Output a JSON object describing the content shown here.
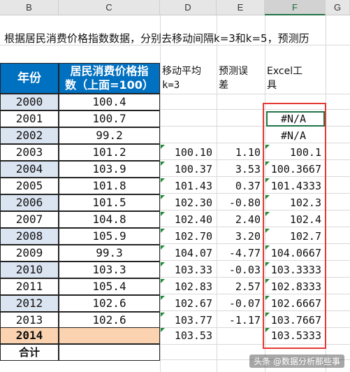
{
  "columns": [
    "B",
    "C",
    "D",
    "E",
    "F",
    "G"
  ],
  "intro_text": "根据居民消费价格指数数据，分别去移动间隔k=3和k=5，预测历",
  "headers": {
    "year": "年份",
    "cpi_line1": "居民消费价格指",
    "cpi_line2": "数（上面=100）",
    "ma_line1": "移动平均",
    "ma_line2": "k=3",
    "err_line1": "预测误",
    "err_line2": "差",
    "tool_line1": "Excel工",
    "tool_line2": "具"
  },
  "rows": [
    {
      "year": "2000",
      "cpi": "100.4",
      "ma": "",
      "err": "",
      "tool": ""
    },
    {
      "year": "2001",
      "cpi": "100.7",
      "ma": "",
      "err": "",
      "tool": "#N/A"
    },
    {
      "year": "2002",
      "cpi": "99.2",
      "ma": "",
      "err": "",
      "tool": "#N/A"
    },
    {
      "year": "2003",
      "cpi": "101.2",
      "ma": "100.10",
      "err": "1.10",
      "tool": "100.1"
    },
    {
      "year": "2004",
      "cpi": "103.9",
      "ma": "100.37",
      "err": "3.53",
      "tool": "100.3667"
    },
    {
      "year": "2005",
      "cpi": "101.8",
      "ma": "101.43",
      "err": "0.37",
      "tool": "101.4333"
    },
    {
      "year": "2006",
      "cpi": "101.5",
      "ma": "102.30",
      "err": "-0.80",
      "tool": "102.3"
    },
    {
      "year": "2007",
      "cpi": "104.8",
      "ma": "102.40",
      "err": "2.40",
      "tool": "102.4"
    },
    {
      "year": "2008",
      "cpi": "105.9",
      "ma": "102.70",
      "err": "3.20",
      "tool": "102.7"
    },
    {
      "year": "2009",
      "cpi": "99.3",
      "ma": "104.07",
      "err": "-4.77",
      "tool": "104.0667"
    },
    {
      "year": "2010",
      "cpi": "103.3",
      "ma": "103.33",
      "err": "-0.03",
      "tool": "103.3333"
    },
    {
      "year": "2011",
      "cpi": "105.4",
      "ma": "102.83",
      "err": "2.57",
      "tool": "102.8333"
    },
    {
      "year": "2012",
      "cpi": "102.6",
      "ma": "102.67",
      "err": "-0.07",
      "tool": "102.6667"
    },
    {
      "year": "2013",
      "cpi": "102.6",
      "ma": "103.77",
      "err": "-1.17",
      "tool": "103.7667"
    }
  ],
  "forecast_row": {
    "year": "2014",
    "cpi": "",
    "ma": "103.53",
    "err": "",
    "tool": "103.5333"
  },
  "total_row": {
    "label": "合计"
  },
  "watermark": "头条 @数据分析那些事",
  "colors": {
    "header_blue": "#0070c0",
    "year_fill": "#dbe4f1",
    "forecast_fill": "#fbd3b0",
    "red_box": "#e53935",
    "error_green": "#1e8c3a"
  }
}
